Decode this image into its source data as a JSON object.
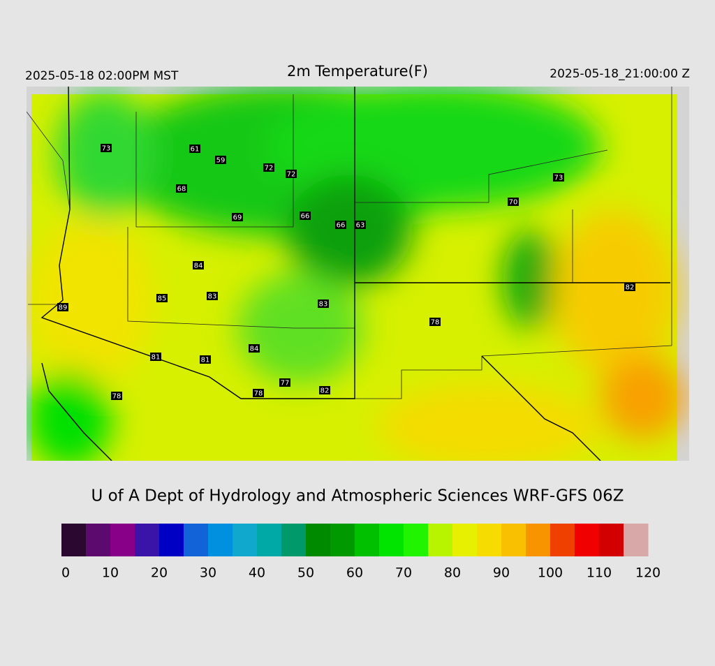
{
  "header": {
    "local_time": "2025-05-18 02:00PM MST",
    "title": "2m Temperature(F)",
    "valid_time": "2025-05-18_21:00:00 Z"
  },
  "stations": [
    73,
    61,
    59,
    72,
    72,
    68,
    69,
    66,
    66,
    63,
    73,
    70,
    84,
    85,
    83,
    83,
    82,
    89,
    78,
    84,
    81,
    81,
    77,
    82,
    78,
    78
  ],
  "credit": "U of A Dept of Hydrology and Atmospheric Sciences WRF-GFS 06Z",
  "colorbar": {
    "range": [
      0,
      120
    ],
    "ticks": [
      0,
      10,
      20,
      30,
      40,
      50,
      60,
      70,
      80,
      90,
      100,
      110,
      120
    ],
    "colors": [
      "#2a0830",
      "#5c0a6e",
      "#880088",
      "#3a14a8",
      "#0000c4",
      "#1262d8",
      "#0090e0",
      "#10a8cc",
      "#00a8a6",
      "#009a6a",
      "#008a00",
      "#009a00",
      "#00c000",
      "#00e400",
      "#20f400",
      "#b8f400",
      "#e6f000",
      "#f6dc00",
      "#f8c000",
      "#f89400",
      "#f04000",
      "#f00000",
      "#d20000",
      "#d8a8a8"
    ]
  }
}
